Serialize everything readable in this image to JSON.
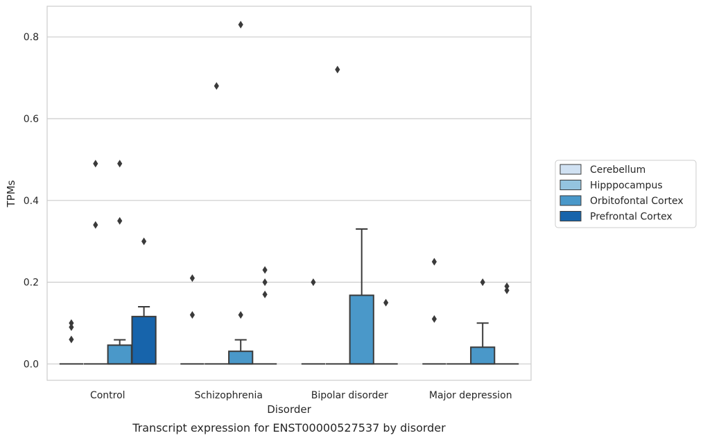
{
  "chart_data": {
    "type": "box",
    "caption": "Transcript expression for ENST00000527537 by disorder",
    "xlabel": "Disorder",
    "ylabel": "TPMs",
    "ylim": [
      -0.04,
      0.875
    ],
    "yticks": [
      0.0,
      0.2,
      0.4,
      0.6,
      0.8
    ],
    "ytick_labels": [
      "0.0",
      "0.2",
      "0.4",
      "0.6",
      "0.8"
    ],
    "grid": "horizontal",
    "legend_position": "right",
    "categories": [
      "Control",
      "Schizophrenia",
      "Bipolar disorder",
      "Major depression"
    ],
    "series": [
      {
        "name": "Cerebellum",
        "color": "#d0e1f2"
      },
      {
        "name": "Hipppocampus",
        "color": "#94c4df"
      },
      {
        "name": "Orbitofontal Cortex",
        "color": "#4a98c9"
      },
      {
        "name": "Prefrontal Cortex",
        "color": "#1764ab"
      }
    ],
    "boxes": [
      {
        "category": "Control",
        "series": "Cerebellum",
        "q1": 0,
        "median": 0,
        "q3": 0,
        "whisker_low": 0,
        "whisker_high": 0,
        "fliers": [
          0.1,
          0.09,
          0.06
        ]
      },
      {
        "category": "Control",
        "series": "Hipppocampus",
        "q1": 0,
        "median": 0,
        "q3": 0,
        "whisker_low": 0,
        "whisker_high": 0,
        "fliers": [
          0.49,
          0.34
        ]
      },
      {
        "category": "Control",
        "series": "Orbitofontal Cortex",
        "q1": 0,
        "median": 0,
        "q3": 0.046,
        "whisker_low": 0,
        "whisker_high": 0.059,
        "fliers": [
          0.49,
          0.35
        ]
      },
      {
        "category": "Control",
        "series": "Prefrontal Cortex",
        "q1": 0,
        "median": 0,
        "q3": 0.116,
        "whisker_low": 0,
        "whisker_high": 0.14,
        "fliers": [
          0.3
        ]
      },
      {
        "category": "Schizophrenia",
        "series": "Cerebellum",
        "q1": 0,
        "median": 0,
        "q3": 0,
        "whisker_low": 0,
        "whisker_high": 0,
        "fliers": [
          0.21,
          0.12
        ]
      },
      {
        "category": "Schizophrenia",
        "series": "Hipppocampus",
        "q1": 0,
        "median": 0,
        "q3": 0,
        "whisker_low": 0,
        "whisker_high": 0,
        "fliers": [
          0.68
        ]
      },
      {
        "category": "Schizophrenia",
        "series": "Orbitofontal Cortex",
        "q1": 0,
        "median": 0,
        "q3": 0.031,
        "whisker_low": 0,
        "whisker_high": 0.059,
        "fliers": [
          0.83,
          0.12
        ]
      },
      {
        "category": "Schizophrenia",
        "series": "Prefrontal Cortex",
        "q1": 0,
        "median": 0,
        "q3": 0,
        "whisker_low": 0,
        "whisker_high": 0,
        "fliers": [
          0.23,
          0.2,
          0.17
        ]
      },
      {
        "category": "Bipolar disorder",
        "series": "Cerebellum",
        "q1": 0,
        "median": 0,
        "q3": 0,
        "whisker_low": 0,
        "whisker_high": 0,
        "fliers": [
          0.2
        ]
      },
      {
        "category": "Bipolar disorder",
        "series": "Hipppocampus",
        "q1": 0,
        "median": 0,
        "q3": 0,
        "whisker_low": 0,
        "whisker_high": 0,
        "fliers": [
          0.72
        ]
      },
      {
        "category": "Bipolar disorder",
        "series": "Orbitofontal Cortex",
        "q1": 0,
        "median": 0,
        "q3": 0.168,
        "whisker_low": 0,
        "whisker_high": 0.33,
        "fliers": []
      },
      {
        "category": "Bipolar disorder",
        "series": "Prefrontal Cortex",
        "q1": 0,
        "median": 0,
        "q3": 0,
        "whisker_low": 0,
        "whisker_high": 0,
        "fliers": [
          0.15
        ]
      },
      {
        "category": "Major depression",
        "series": "Cerebellum",
        "q1": 0,
        "median": 0,
        "q3": 0,
        "whisker_low": 0,
        "whisker_high": 0,
        "fliers": [
          0.25,
          0.11
        ]
      },
      {
        "category": "Major depression",
        "series": "Hipppocampus",
        "q1": 0,
        "median": 0,
        "q3": 0,
        "whisker_low": 0,
        "whisker_high": 0,
        "fliers": []
      },
      {
        "category": "Major depression",
        "series": "Orbitofontal Cortex",
        "q1": 0,
        "median": 0,
        "q3": 0.041,
        "whisker_low": 0,
        "whisker_high": 0.1,
        "fliers": [
          0.2
        ]
      },
      {
        "category": "Major depression",
        "series": "Prefrontal Cortex",
        "q1": 0,
        "median": 0,
        "q3": 0,
        "whisker_low": 0,
        "whisker_high": 0,
        "fliers": [
          0.19,
          0.18
        ]
      }
    ]
  }
}
